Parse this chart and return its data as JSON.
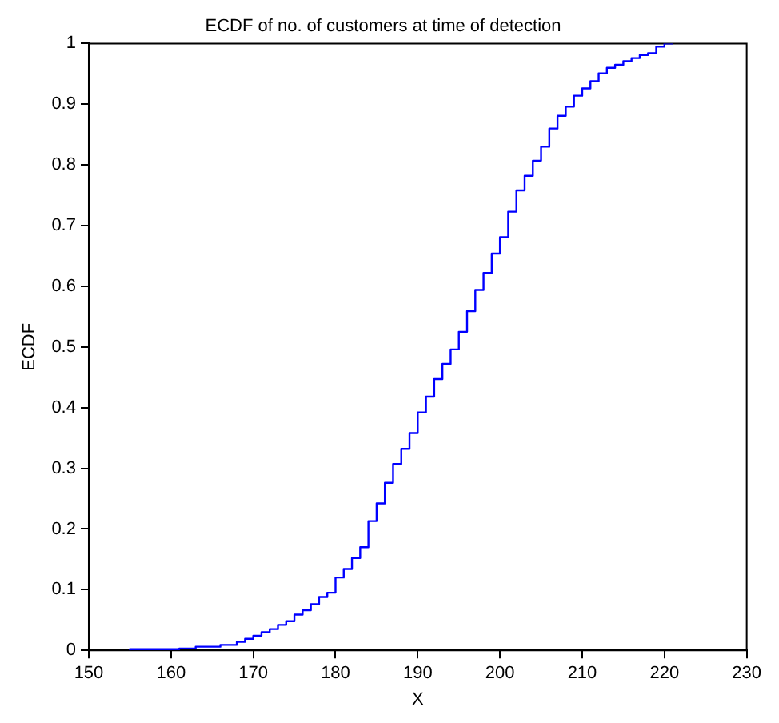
{
  "chart_data": {
    "type": "step",
    "title": "ECDF of no. of customers at time of detection",
    "xlabel": "X",
    "ylabel": "ECDF",
    "x": [
      155,
      161,
      163,
      166,
      168,
      169,
      170,
      171,
      172,
      173,
      174,
      175,
      176,
      177,
      178,
      179,
      180,
      181,
      182,
      183,
      184,
      185,
      186,
      187,
      188,
      189,
      190,
      191,
      192,
      193,
      194,
      195,
      196,
      197,
      198,
      199,
      200,
      201,
      202,
      203,
      204,
      205,
      206,
      207,
      208,
      209,
      210,
      211,
      212,
      213,
      214,
      215,
      216,
      217,
      218,
      219,
      220,
      221
    ],
    "series": [
      {
        "color": "#0000ff",
        "values": [
          0,
          0.002,
          0.003,
          0.006,
          0.009,
          0.014,
          0.019,
          0.024,
          0.03,
          0.035,
          0.042,
          0.048,
          0.059,
          0.066,
          0.076,
          0.088,
          0.095,
          0.12,
          0.134,
          0.152,
          0.17,
          0.213,
          0.242,
          0.276,
          0.307,
          0.332,
          0.358,
          0.392,
          0.418,
          0.447,
          0.472,
          0.496,
          0.525,
          0.559,
          0.594,
          0.622,
          0.654,
          0.681,
          0.723,
          0.758,
          0.782,
          0.807,
          0.83,
          0.86,
          0.881,
          0.896,
          0.914,
          0.926,
          0.938,
          0.951,
          0.96,
          0.965,
          0.971,
          0.976,
          0.981,
          0.984,
          0.995,
          1
        ]
      }
    ],
    "xlim": [
      150,
      230
    ],
    "xticks": [
      150,
      160,
      170,
      180,
      190,
      200,
      210,
      220,
      230
    ],
    "ylim": [
      0,
      1
    ],
    "yticks": [
      0,
      0.1,
      0.2,
      0.3,
      0.4,
      0.5,
      0.6,
      0.7,
      0.8,
      0.9,
      1
    ],
    "grid": false,
    "legend": false
  }
}
